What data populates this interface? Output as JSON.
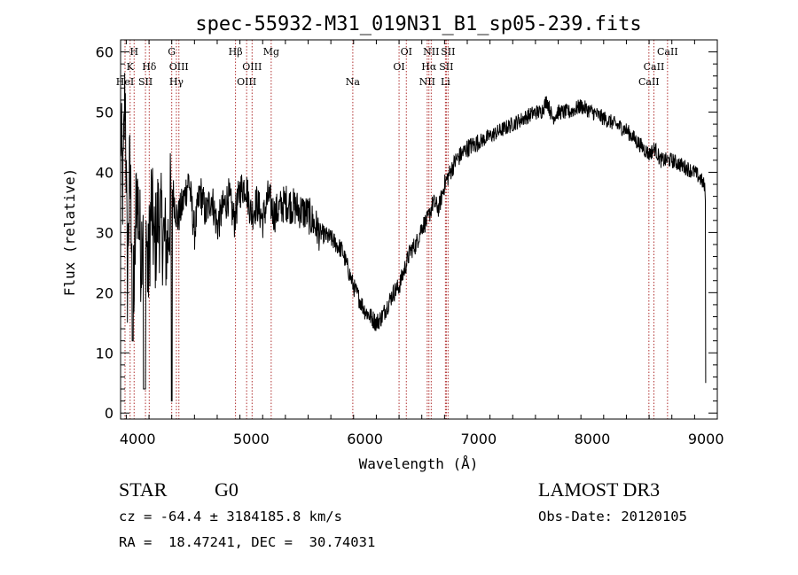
{
  "chart_data": {
    "type": "line",
    "title": "spec-55932-M31_019N31_B1_sp05-239.fits",
    "xlabel": "Wavelength (Å)",
    "ylabel": "Flux (relative)",
    "xlim": [
      3850,
      9100
    ],
    "ylim": [
      -1,
      62
    ],
    "xticks": [
      4000,
      5000,
      6000,
      7000,
      8000,
      9000
    ],
    "yticks": [
      0,
      10,
      20,
      30,
      40,
      50,
      60
    ],
    "grid": false,
    "series": [
      {
        "x": [
          3850,
          3870,
          3890,
          3910,
          3930,
          3950,
          3970,
          3990,
          4010,
          4030,
          4060,
          4090,
          4120,
          4150,
          4180,
          4220,
          4260,
          4300,
          4350,
          4400,
          4450,
          4500,
          4550,
          4600,
          4650,
          4700,
          4750,
          4800,
          4850,
          4900,
          4950,
          5000,
          5050,
          5100,
          5150,
          5200,
          5300,
          5400,
          5500,
          5600,
          5700,
          5800,
          5850,
          5900,
          5950,
          6000,
          6050,
          6100,
          6150,
          6200,
          6250,
          6300,
          6350,
          6400,
          6450,
          6500,
          6550,
          6600,
          6650,
          6700,
          6750,
          6800,
          6900,
          7000,
          7100,
          7200,
          7300,
          7400,
          7500,
          7550,
          7600,
          7650,
          7700,
          7800,
          7900,
          8000,
          8100,
          8200,
          8300,
          8400,
          8500,
          8550,
          8600,
          8700,
          8800,
          8900,
          8950,
          8980,
          9000
        ],
        "y": [
          48,
          36,
          55,
          22,
          40,
          31,
          20,
          38,
          33,
          26,
          40,
          22,
          35,
          27,
          33,
          30,
          27,
          38,
          32,
          35,
          39,
          30,
          37,
          33,
          36,
          31,
          34,
          36,
          32,
          37,
          38,
          33,
          35,
          32,
          36,
          33,
          35,
          34,
          33,
          30,
          29,
          27,
          24,
          21,
          19,
          17,
          16,
          15,
          16,
          18,
          20,
          21,
          24,
          27,
          28,
          31,
          32,
          35,
          34,
          38,
          40,
          42,
          44,
          45,
          46,
          47,
          48,
          49,
          50,
          50,
          52,
          49,
          50,
          50,
          51,
          50,
          49,
          48,
          47,
          45,
          43,
          44,
          42,
          42,
          41,
          40,
          39,
          38,
          36
        ]
      }
    ],
    "lines": [
      {
        "label": "H",
        "x": 3969,
        "row": 0
      },
      {
        "label": "K",
        "x": 3934,
        "row": 1
      },
      {
        "label": "HeI",
        "x": 3889,
        "row": 2
      },
      {
        "label": "SII",
        "x": 4069,
        "row": 2
      },
      {
        "label": "Hδ",
        "x": 4102,
        "row": 1
      },
      {
        "label": "G",
        "x": 4300,
        "row": 0
      },
      {
        "label": "OIII",
        "x": 4363,
        "row": 1
      },
      {
        "label": "Hγ",
        "x": 4341,
        "row": 2
      },
      {
        "label": "Hβ",
        "x": 4861,
        "row": 0
      },
      {
        "label": "OIII",
        "x": 5007,
        "row": 1
      },
      {
        "label": "OIII",
        "x": 4959,
        "row": 2
      },
      {
        "label": "Mg",
        "x": 5175,
        "row": 0
      },
      {
        "label": "Na",
        "x": 5893,
        "row": 2
      },
      {
        "label": "OI",
        "x": 6364,
        "row": 0
      },
      {
        "label": "OI",
        "x": 6300,
        "row": 1
      },
      {
        "label": "NII",
        "x": 6583,
        "row": 0
      },
      {
        "label": "SII",
        "x": 6731,
        "row": 0
      },
      {
        "label": "Hα",
        "x": 6563,
        "row": 1
      },
      {
        "label": "SII",
        "x": 6716,
        "row": 1
      },
      {
        "label": "NII",
        "x": 6548,
        "row": 2
      },
      {
        "label": "Li",
        "x": 6708,
        "row": 2
      },
      {
        "label": "CaII",
        "x": 8662,
        "row": 0
      },
      {
        "label": "CaII",
        "x": 8542,
        "row": 1
      },
      {
        "label": "CaII",
        "x": 8498,
        "row": 2
      }
    ]
  },
  "info": {
    "class": "STAR",
    "subclass": "G0",
    "survey": "LAMOST DR3",
    "cz": "cz = -64.4 ± 3184185.8 km/s",
    "obs_date": "Obs-Date: 20120105",
    "coords": "RA =  18.47241, DEC =  30.74031"
  }
}
